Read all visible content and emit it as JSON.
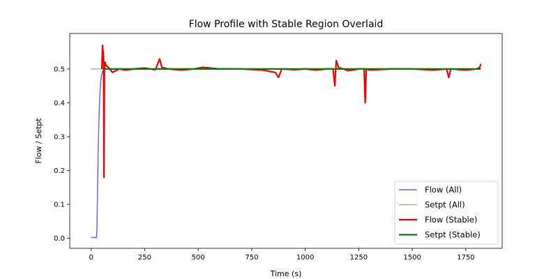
{
  "chart_data": {
    "type": "line",
    "title": "Flow Profile with Stable Region Overlaid",
    "xlabel": "Time (s)",
    "ylabel": "Flow / Setpt",
    "xlim": [
      -100,
      1920
    ],
    "ylim": [
      -0.03,
      0.605
    ],
    "xticks": [
      0,
      250,
      500,
      750,
      1000,
      1250,
      1500,
      1750
    ],
    "yticks": [
      0.0,
      0.1,
      0.2,
      0.3,
      0.4,
      0.5
    ],
    "grid": false,
    "legend_position": "lower-right",
    "series": [
      {
        "name": "Flow (All)",
        "color": "#6666ee",
        "points": [
          [
            0,
            0.002
          ],
          [
            25,
            0.002
          ],
          [
            27,
            0.03
          ],
          [
            30,
            0.15
          ],
          [
            33,
            0.26
          ],
          [
            36,
            0.34
          ],
          [
            39,
            0.4
          ],
          [
            42,
            0.44
          ],
          [
            45,
            0.465
          ],
          [
            48,
            0.48
          ],
          [
            52,
            0.49
          ],
          [
            55,
            0.495
          ]
        ]
      },
      {
        "name": "Setpt (All)",
        "color": "#aaaaaa",
        "points": [
          [
            0,
            0.5
          ],
          [
            55,
            0.5
          ]
        ]
      },
      {
        "name": "Flow (Stable)",
        "color": "#ee0000",
        "points": [
          [
            50,
            0.5
          ],
          [
            53,
            0.57
          ],
          [
            56,
            0.55
          ],
          [
            58,
            0.535
          ],
          [
            60,
            0.18
          ],
          [
            62,
            0.5
          ],
          [
            65,
            0.52
          ],
          [
            70,
            0.51
          ],
          [
            80,
            0.505
          ],
          [
            100,
            0.49
          ],
          [
            130,
            0.5
          ],
          [
            160,
            0.497
          ],
          [
            200,
            0.5
          ],
          [
            250,
            0.503
          ],
          [
            300,
            0.498
          ],
          [
            320,
            0.53
          ],
          [
            330,
            0.505
          ],
          [
            360,
            0.5
          ],
          [
            420,
            0.497
          ],
          [
            480,
            0.5
          ],
          [
            520,
            0.505
          ],
          [
            600,
            0.5
          ],
          [
            700,
            0.5
          ],
          [
            800,
            0.497
          ],
          [
            860,
            0.49
          ],
          [
            875,
            0.475
          ],
          [
            890,
            0.5
          ],
          [
            950,
            0.498
          ],
          [
            1000,
            0.5
          ],
          [
            1050,
            0.497
          ],
          [
            1100,
            0.5
          ],
          [
            1130,
            0.5
          ],
          [
            1138,
            0.45
          ],
          [
            1145,
            0.525
          ],
          [
            1155,
            0.505
          ],
          [
            1200,
            0.495
          ],
          [
            1250,
            0.5
          ],
          [
            1275,
            0.5
          ],
          [
            1280,
            0.4
          ],
          [
            1285,
            0.5
          ],
          [
            1300,
            0.497
          ],
          [
            1400,
            0.5
          ],
          [
            1500,
            0.5
          ],
          [
            1600,
            0.497
          ],
          [
            1660,
            0.5
          ],
          [
            1670,
            0.475
          ],
          [
            1680,
            0.5
          ],
          [
            1750,
            0.497
          ],
          [
            1800,
            0.5
          ],
          [
            1815,
            0.505
          ],
          [
            1820,
            0.515
          ]
        ]
      },
      {
        "name": "Setpt (Stable)",
        "color": "#008000",
        "points": [
          [
            55,
            0.5
          ],
          [
            1820,
            0.5
          ]
        ]
      }
    ]
  }
}
